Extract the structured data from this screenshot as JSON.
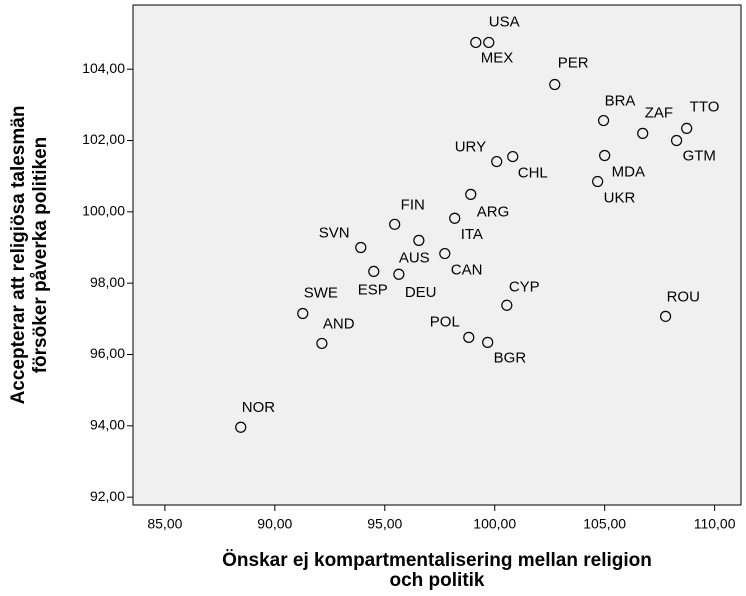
{
  "chart_data": {
    "type": "scatter",
    "x_label": [
      "Önskar ej kompartmentalisering mellan religion",
      "och politik"
    ],
    "y_label": [
      "Accepterar att religiösa talesmän",
      "försöker påverka politiken"
    ],
    "labels": [
      "USA",
      "MEX",
      "PER",
      "BRA",
      "ZAF",
      "TTO",
      "GTM",
      "MDA",
      "UKR",
      "URY",
      "CHL",
      "ARG",
      "ITA",
      "FIN",
      "AUS",
      "CAN",
      "SVN",
      "ESP",
      "DEU",
      "CYP",
      "SWE",
      "AND",
      "POL",
      "BGR",
      "ROU",
      "NOR"
    ],
    "x": [
      99.73,
      99.14,
      102.73,
      104.95,
      106.73,
      108.73,
      108.27,
      105.0,
      104.68,
      100.09,
      100.82,
      98.91,
      98.18,
      95.45,
      96.55,
      97.73,
      93.91,
      94.5,
      95.64,
      100.55,
      91.27,
      92.14,
      98.82,
      99.68,
      107.77,
      88.45
    ],
    "values": [
      104.75,
      104.75,
      103.57,
      102.56,
      102.2,
      102.34,
      102.0,
      101.58,
      100.85,
      101.41,
      101.55,
      100.49,
      99.82,
      99.65,
      99.2,
      98.83,
      99.0,
      98.33,
      98.25,
      97.38,
      97.15,
      96.31,
      96.48,
      96.34,
      97.07,
      93.96
    ],
    "xlim": [
      83.55,
      111.2
    ],
    "ylim": [
      91.78,
      105.8
    ],
    "xticks": [
      {
        "value": 85,
        "label": "85,00"
      },
      {
        "value": 90,
        "label": "90,00"
      },
      {
        "value": 95,
        "label": "95,00"
      },
      {
        "value": 100,
        "label": "100,00"
      },
      {
        "value": 105,
        "label": "105,00"
      },
      {
        "value": 110,
        "label": "110,00"
      }
    ],
    "yticks": [
      {
        "value": 92,
        "label": "92,00"
      },
      {
        "value": 94,
        "label": "94,00"
      },
      {
        "value": 96,
        "label": "96,00"
      },
      {
        "value": 98,
        "label": "98,00"
      },
      {
        "value": 100,
        "label": "100,00"
      },
      {
        "value": 102,
        "label": "102,00"
      },
      {
        "value": 104,
        "label": "104,00"
      }
    ],
    "color": "#000000",
    "background": "#f0f0f0"
  }
}
